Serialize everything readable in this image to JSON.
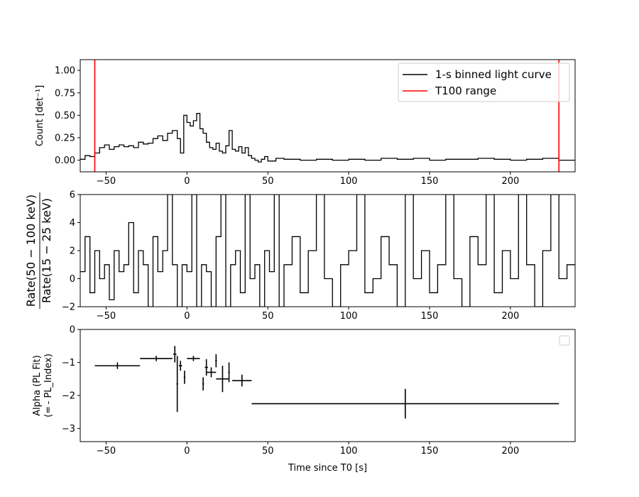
{
  "chart_data": [
    {
      "type": "line",
      "ylabel": "Count [det⁻¹]",
      "xlim": [
        -66,
        240
      ],
      "ylim": [
        -0.13,
        1.12
      ],
      "xticks": [
        -50,
        0,
        50,
        100,
        150,
        200
      ],
      "yticks": [
        0.0,
        0.25,
        0.5,
        0.75,
        1.0
      ],
      "ytick_labels": [
        "0.00",
        "0.25",
        "0.50",
        "0.75",
        "1.00"
      ],
      "legend": {
        "position": "top-right",
        "entries": [
          {
            "label": "1-s binned light curve",
            "color": "#000000"
          },
          {
            "label": "T100 range",
            "color": "#ff0000"
          }
        ]
      },
      "series": [
        {
          "name": "1-s binned light curve",
          "color": "#000000",
          "step": true,
          "x": [
            -66,
            -63,
            -60,
            -57,
            -54,
            -51,
            -48,
            -45,
            -42,
            -39,
            -36,
            -33,
            -30,
            -27,
            -24,
            -21,
            -18,
            -15,
            -12,
            -9,
            -6,
            -4,
            -2,
            0,
            2,
            4,
            6,
            8,
            10,
            12,
            14,
            16,
            18,
            20,
            22,
            24,
            26,
            28,
            30,
            32,
            34,
            36,
            38,
            40,
            42,
            44,
            46,
            48,
            50,
            55,
            60,
            70,
            80,
            90,
            100,
            110,
            120,
            130,
            140,
            150,
            160,
            170,
            180,
            190,
            200,
            210,
            220,
            230,
            240
          ],
          "y": [
            0.01,
            0.05,
            0.04,
            0.08,
            0.14,
            0.17,
            0.12,
            0.15,
            0.17,
            0.15,
            0.16,
            0.14,
            0.2,
            0.18,
            0.19,
            0.24,
            0.27,
            0.22,
            0.3,
            0.33,
            0.24,
            0.08,
            0.5,
            0.42,
            0.38,
            0.44,
            0.52,
            0.35,
            0.3,
            0.2,
            0.14,
            0.12,
            0.19,
            0.1,
            0.08,
            0.16,
            0.33,
            0.12,
            0.1,
            0.15,
            0.08,
            0.14,
            0.05,
            0.02,
            0.0,
            -0.02,
            0.01,
            0.04,
            -0.01,
            0.02,
            0.01,
            0.0,
            0.01,
            0.0,
            0.01,
            0.0,
            0.02,
            0.01,
            0.02,
            0.0,
            0.01,
            0.01,
            0.02,
            0.01,
            0.0,
            0.01,
            0.02,
            0.0,
            0.01
          ]
        },
        {
          "name": "T100 range",
          "color": "#ff0000",
          "vlines": [
            -57,
            230
          ]
        }
      ]
    },
    {
      "type": "line",
      "ylabel_numerator": "Rate(50 − 100 keV)",
      "ylabel_denominator": "Rate(15 − 25 keV)",
      "xlim": [
        -66,
        240
      ],
      "ylim": [
        -2,
        6
      ],
      "xticks": [
        -50,
        0,
        50,
        100,
        150,
        200
      ],
      "yticks": [
        -2,
        0,
        2,
        4,
        6
      ],
      "series": [
        {
          "name": "",
          "color": "#000000",
          "step": true,
          "x": [
            -66,
            -63,
            -60,
            -57,
            -54,
            -51,
            -48,
            -45,
            -42,
            -39,
            -36,
            -33,
            -30,
            -27,
            -24,
            -21,
            -18,
            -15,
            -12,
            -9,
            -6,
            -3,
            0,
            3,
            6,
            9,
            12,
            15,
            18,
            21,
            24,
            27,
            30,
            33,
            36,
            39,
            42,
            45,
            48,
            51,
            54,
            57,
            60,
            65,
            70,
            75,
            80,
            85,
            90,
            95,
            100,
            105,
            110,
            115,
            120,
            125,
            130,
            135,
            140,
            145,
            150,
            155,
            160,
            165,
            170,
            175,
            180,
            185,
            190,
            195,
            200,
            205,
            210,
            215,
            220,
            225,
            230,
            235,
            240
          ],
          "y": [
            0.5,
            3,
            -1,
            2,
            0,
            1,
            -1.5,
            2,
            0.5,
            1,
            4,
            -1,
            2,
            1,
            -2,
            3,
            0.5,
            2,
            6,
            1,
            -2,
            1,
            0.5,
            6,
            -2,
            1,
            0.5,
            -2,
            3,
            6,
            -2,
            1,
            2,
            -1,
            6,
            0,
            1,
            -2,
            2,
            0.5,
            6,
            -2,
            1,
            3,
            -1,
            2,
            6,
            0,
            -2,
            1,
            2,
            6,
            -1,
            0,
            3,
            1,
            -2,
            6,
            0,
            2,
            -1,
            1,
            6,
            0,
            -2,
            3,
            1,
            6,
            -1,
            2,
            0,
            6,
            1,
            -2,
            2,
            6,
            0,
            1,
            0
          ]
        }
      ]
    },
    {
      "type": "scatter",
      "xlabel": "Time since T0 [s]",
      "ylabel_line1": "Alpha (PL Fit)",
      "ylabel_line2": "(= - PL_Index)",
      "xlim": [
        -66,
        240
      ],
      "ylim": [
        -3.4,
        0
      ],
      "xticks": [
        -50,
        0,
        50,
        100,
        150,
        200
      ],
      "yticks": [
        -3,
        -2,
        -1,
        0
      ],
      "legend": {
        "position": "top-right",
        "entries": []
      },
      "points": [
        {
          "x": -43,
          "xerr": 14,
          "y": -1.1,
          "yerr": 0.1
        },
        {
          "x": -19,
          "xerr": 10,
          "y": -0.88,
          "yerr": 0.08
        },
        {
          "x": -7.5,
          "xerr": 1,
          "y": -0.75,
          "yerr": 0.25
        },
        {
          "x": -6,
          "xerr": 0.5,
          "y": -1.65,
          "yerr": 0.85
        },
        {
          "x": -4,
          "xerr": 1,
          "y": -1.1,
          "yerr": 0.15
        },
        {
          "x": -1.5,
          "xerr": 0.5,
          "y": -1.45,
          "yerr": 0.2
        },
        {
          "x": 4,
          "xerr": 4,
          "y": -0.88,
          "yerr": 0.08
        },
        {
          "x": 10,
          "xerr": 0.5,
          "y": -1.65,
          "yerr": 0.2
        },
        {
          "x": 12,
          "xerr": 1,
          "y": -1.15,
          "yerr": 0.25
        },
        {
          "x": 15,
          "xerr": 3,
          "y": -1.3,
          "yerr": 0.15
        },
        {
          "x": 18,
          "xerr": 0.5,
          "y": -0.95,
          "yerr": 0.2
        },
        {
          "x": 22,
          "xerr": 4,
          "y": -1.5,
          "yerr": 0.4
        },
        {
          "x": 26,
          "xerr": 0.5,
          "y": -1.3,
          "yerr": 0.3
        },
        {
          "x": 34,
          "xerr": 6,
          "y": -1.55,
          "yerr": 0.18
        },
        {
          "x": 135,
          "xerr": 95,
          "y": -2.25,
          "yerr": 0.45
        }
      ]
    }
  ]
}
